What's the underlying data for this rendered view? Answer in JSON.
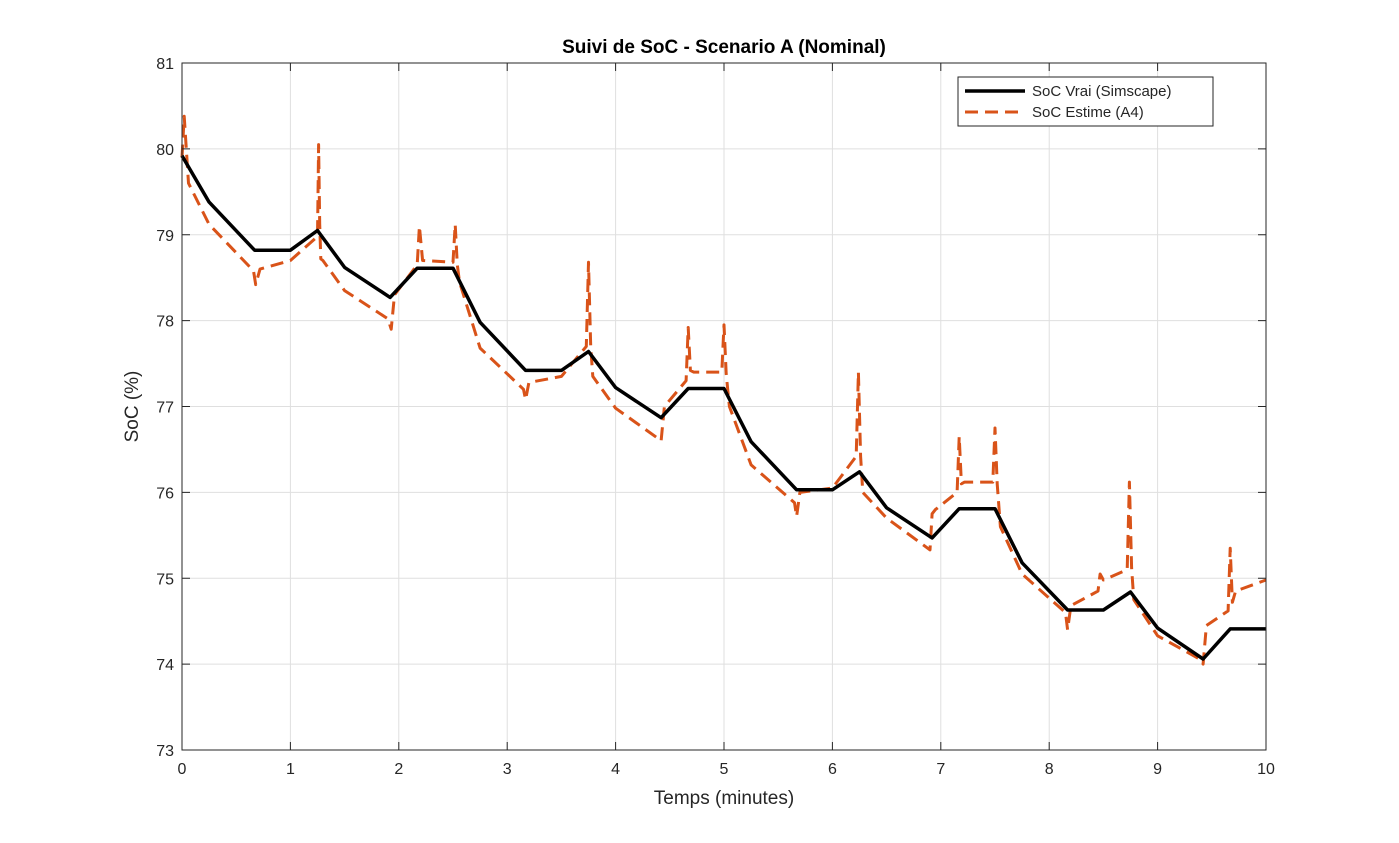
{
  "chart_data": {
    "type": "line",
    "title": "Suivi de SoC - Scenario A (Nominal)",
    "xlabel": "Temps (minutes)",
    "ylabel": "SoC (%)",
    "xlim": [
      0,
      10
    ],
    "ylim": [
      73,
      81
    ],
    "xticks": [
      0,
      1,
      2,
      3,
      4,
      5,
      6,
      7,
      8,
      9,
      10
    ],
    "yticks": [
      73,
      74,
      75,
      76,
      77,
      78,
      79,
      80,
      81
    ],
    "grid": true,
    "legend_position": "top-right",
    "series": [
      {
        "name": "SoC Vrai (Simscape)",
        "color": "#000000",
        "style": "solid",
        "x": [
          0,
          0.25,
          0.67,
          1.0,
          1.25,
          1.5,
          1.92,
          2.17,
          2.5,
          2.75,
          3.17,
          3.5,
          3.75,
          4.0,
          4.42,
          4.67,
          5.0,
          5.25,
          5.67,
          6.0,
          6.25,
          6.5,
          6.92,
          7.17,
          7.5,
          7.75,
          8.17,
          8.5,
          8.75,
          9.0,
          9.42,
          9.67,
          10.0
        ],
        "values": [
          79.92,
          79.38,
          78.82,
          78.82,
          79.05,
          78.62,
          78.27,
          78.61,
          78.61,
          77.98,
          77.42,
          77.42,
          77.64,
          77.22,
          76.87,
          77.21,
          77.21,
          76.59,
          76.03,
          76.03,
          76.24,
          75.82,
          75.47,
          75.81,
          75.81,
          75.18,
          74.63,
          74.63,
          74.84,
          74.42,
          74.06,
          74.41,
          74.41
        ]
      },
      {
        "name": "SoC Estime (A4)",
        "color": "#D95319",
        "style": "dashed",
        "x": [
          0,
          0.02,
          0.04,
          0.06,
          0.25,
          0.66,
          0.68,
          0.72,
          1.0,
          1.25,
          1.26,
          1.27,
          1.28,
          1.3,
          1.5,
          1.9,
          1.93,
          1.96,
          2.17,
          2.19,
          2.22,
          2.5,
          2.52,
          2.54,
          2.56,
          2.75,
          3.15,
          3.17,
          3.2,
          3.5,
          3.73,
          3.75,
          3.77,
          3.79,
          4.0,
          4.4,
          4.42,
          4.45,
          4.65,
          4.67,
          4.69,
          4.72,
          4.98,
          5.0,
          5.02,
          5.05,
          5.25,
          5.65,
          5.67,
          5.7,
          6.0,
          6.22,
          6.24,
          6.26,
          6.28,
          6.5,
          6.9,
          6.92,
          6.95,
          7.15,
          7.17,
          7.19,
          7.22,
          7.48,
          7.5,
          7.52,
          7.55,
          7.75,
          8.15,
          8.17,
          8.2,
          8.45,
          8.47,
          8.5,
          8.72,
          8.74,
          8.76,
          8.78,
          9.0,
          9.4,
          9.42,
          9.45,
          9.65,
          9.67,
          9.69,
          9.72,
          10.0
        ],
        "values": [
          79.9,
          80.38,
          80.0,
          79.6,
          79.12,
          78.58,
          78.42,
          78.6,
          78.7,
          78.98,
          80.05,
          79.12,
          78.72,
          78.7,
          78.35,
          78.02,
          77.9,
          78.3,
          78.65,
          79.1,
          78.7,
          78.68,
          79.12,
          78.65,
          78.45,
          77.68,
          77.2,
          77.08,
          77.28,
          77.35,
          77.7,
          78.68,
          77.7,
          77.35,
          76.98,
          76.62,
          76.6,
          77.0,
          77.3,
          77.92,
          77.42,
          77.4,
          77.4,
          77.95,
          77.38,
          77.0,
          76.32,
          75.88,
          75.72,
          76.0,
          76.05,
          76.42,
          77.4,
          76.42,
          76.0,
          75.7,
          75.33,
          75.75,
          75.8,
          76.0,
          76.65,
          76.1,
          76.12,
          76.12,
          76.75,
          76.1,
          75.6,
          75.05,
          74.6,
          74.4,
          74.68,
          74.85,
          75.05,
          74.98,
          75.1,
          76.12,
          75.12,
          74.75,
          74.33,
          74.05,
          74.0,
          74.45,
          74.62,
          75.35,
          74.72,
          74.85,
          74.98
        ]
      }
    ]
  }
}
